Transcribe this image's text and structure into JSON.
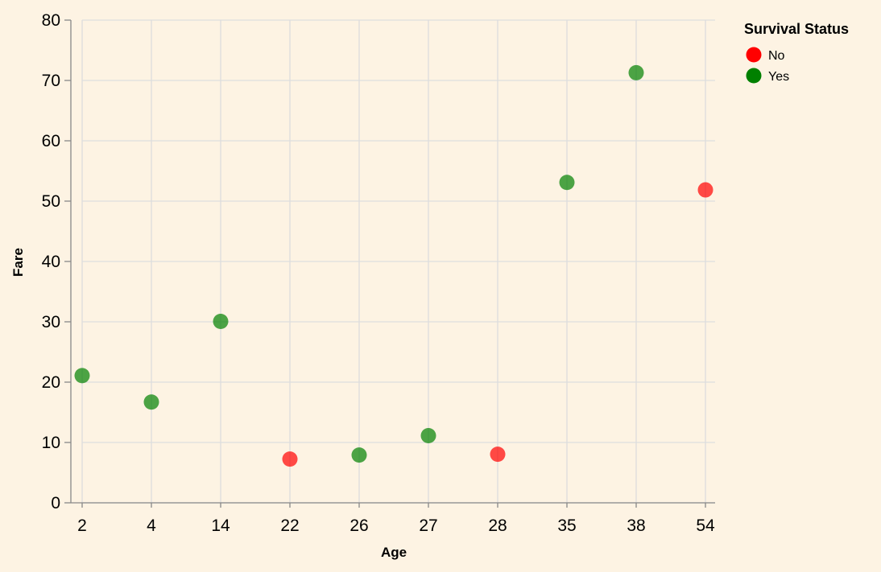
{
  "chart_data": {
    "type": "scatter",
    "title": "",
    "xlabel": "Age",
    "ylabel": "Fare",
    "x_scale": "ordinal",
    "categories": [
      "2",
      "4",
      "14",
      "22",
      "26",
      "27",
      "28",
      "35",
      "38",
      "54"
    ],
    "ylim": [
      0,
      80
    ],
    "y_ticks": [
      0,
      10,
      20,
      30,
      40,
      50,
      60,
      70,
      80
    ],
    "grid": true,
    "legend": {
      "title": "Survival Status",
      "placement": "top-right",
      "entries": [
        {
          "label": "No",
          "color": "#ff0000"
        },
        {
          "label": "Yes",
          "color": "#008000"
        }
      ]
    },
    "series": [
      {
        "name": "No",
        "color": "#ff0000",
        "points": [
          {
            "x": "22",
            "y": 7.25
          },
          {
            "x": "28",
            "y": 8.05
          },
          {
            "x": "54",
            "y": 51.86
          }
        ]
      },
      {
        "name": "Yes",
        "color": "#008000",
        "points": [
          {
            "x": "2",
            "y": 21.08
          },
          {
            "x": "4",
            "y": 16.7
          },
          {
            "x": "14",
            "y": 30.07
          },
          {
            "x": "26",
            "y": 7.92
          },
          {
            "x": "27",
            "y": 11.13
          },
          {
            "x": "35",
            "y": 53.1
          },
          {
            "x": "38",
            "y": 71.28
          }
        ]
      }
    ]
  }
}
